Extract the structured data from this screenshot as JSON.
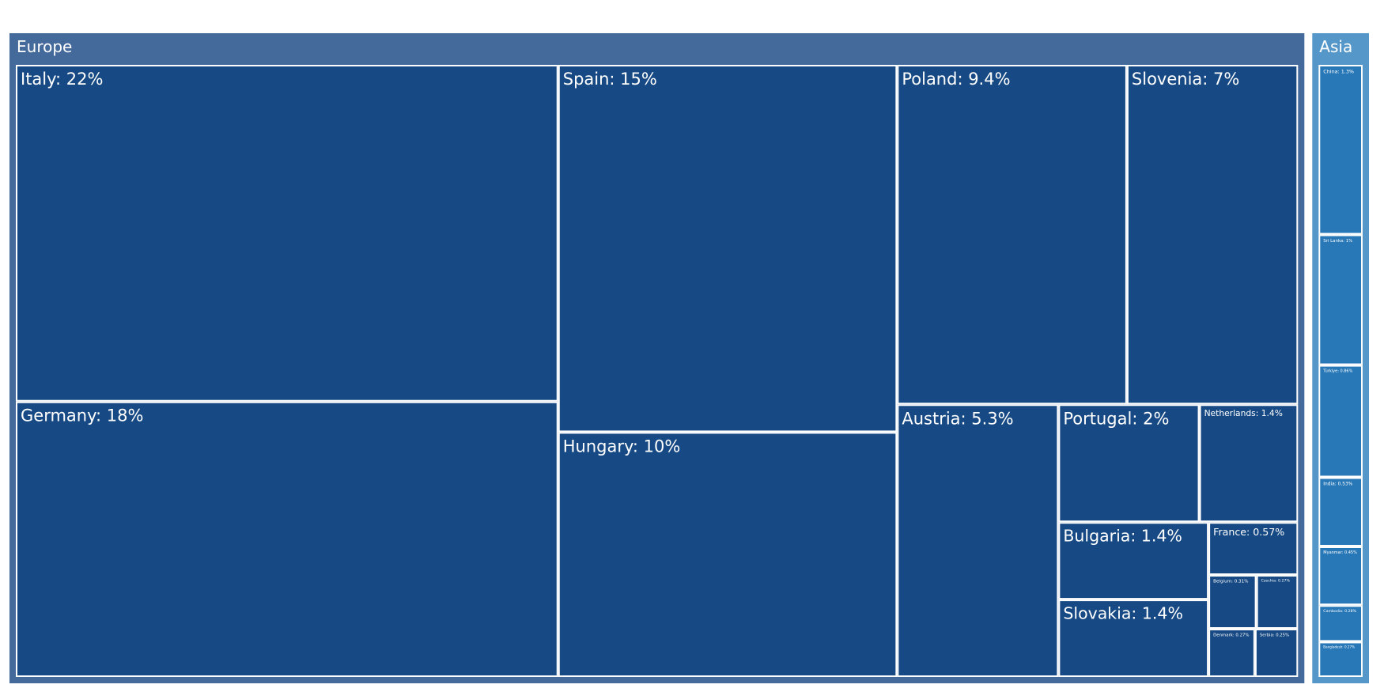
{
  "chart_data": {
    "type": "treemap",
    "groups": [
      {
        "name": "Europe",
        "color": "#44699b",
        "tile_color": "#174a84",
        "labels": [
          "Italy: 22%",
          "Germany: 18%",
          "Spain: 15%",
          "Hungary: 10%",
          "Poland: 9.4%",
          "Slovenia: 7%",
          "Austria: 5.3%",
          "Portugal: 2%",
          "Netherlands: 1.4%",
          "Bulgaria: 1.4%",
          "Slovakia: 1.4%",
          "France: 0.57%",
          "Belgium: 0.31%",
          "Czechia: 0.27%",
          "Denmark: 0.27%",
          "Serbia: 0.25%"
        ],
        "values": [
          22,
          18,
          15,
          10,
          9.4,
          7,
          5.3,
          2,
          1.4,
          1.4,
          1.4,
          0.57,
          0.31,
          0.27,
          0.27,
          0.25
        ]
      },
      {
        "name": "Asia",
        "color": "#5597c9",
        "tile_color": "#2878b8",
        "labels": [
          "China: 1.3%",
          "Sri Lanka: 1%",
          "Türkiye: 0.86%",
          "India: 0.53%",
          "Myanmar: 0.45%",
          "Cambodia: 0.28%",
          "Bangladesh: 0.27%"
        ],
        "values": [
          1.3,
          1,
          0.86,
          0.53,
          0.45,
          0.28,
          0.27
        ]
      }
    ]
  }
}
